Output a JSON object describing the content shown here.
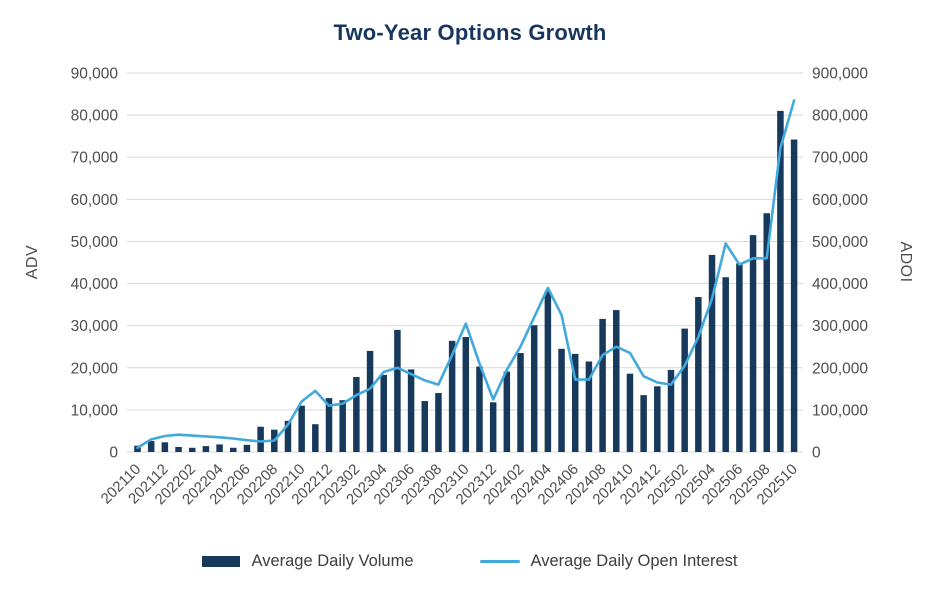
{
  "title": "Two-Year Options Growth",
  "chart_data": {
    "type": "bar",
    "title": "Two-Year Options Growth",
    "ylabel_left": "ADV",
    "ylabel_right": "ADOI",
    "ylim_left": [
      0,
      90000
    ],
    "ylim_right": [
      0,
      900000
    ],
    "y_tick_step_left": 10000,
    "y_tick_step_right": 100000,
    "grid": true,
    "legend_position": "bottom",
    "x_tick_labels": [
      "202110",
      "202112",
      "202202",
      "202204",
      "202206",
      "202208",
      "202210",
      "202212",
      "202302",
      "202304",
      "202306",
      "202308",
      "202310",
      "202312",
      "202402",
      "202404",
      "202406",
      "202408",
      "202410",
      "202412",
      "202502",
      "202504",
      "202506",
      "202508",
      "202510"
    ],
    "categories": [
      "202110",
      "202111",
      "202112",
      "202201",
      "202202",
      "202203",
      "202204",
      "202205",
      "202206",
      "202207",
      "202208",
      "202209",
      "202210",
      "202211",
      "202212",
      "202301",
      "202302",
      "202303",
      "202304",
      "202305",
      "202306",
      "202307",
      "202308",
      "202309",
      "202310",
      "202311",
      "202312",
      "202401",
      "202402",
      "202403",
      "202404",
      "202405",
      "202406",
      "202407",
      "202408",
      "202409",
      "202410",
      "202411",
      "202412",
      "202501",
      "202502",
      "202503",
      "202504",
      "202505",
      "202506",
      "202507",
      "202508",
      "202509",
      "202510"
    ],
    "series": [
      {
        "name": "Average Daily Volume",
        "type": "bar",
        "axis": "left",
        "values": [
          1500,
          2600,
          2300,
          1200,
          1000,
          1400,
          1800,
          1000,
          1700,
          6000,
          5300,
          7400,
          11000,
          6600,
          12800,
          12300,
          17800,
          24000,
          18300,
          29000,
          19600,
          12100,
          14000,
          26400,
          27300,
          20300,
          11800,
          19100,
          23500,
          30100,
          38200,
          24500,
          23300,
          21500,
          31600,
          33700,
          18600,
          13500,
          15600,
          19500,
          29300,
          36800,
          46800,
          41500,
          44800,
          51500,
          56700,
          81000,
          74200
        ]
      },
      {
        "name": "Average Daily Open Interest",
        "type": "line",
        "axis": "right",
        "values": [
          10000,
          30000,
          38000,
          41000,
          39000,
          37000,
          35000,
          32000,
          28000,
          25000,
          27000,
          65000,
          120000,
          145000,
          110000,
          115000,
          135000,
          150000,
          190000,
          200000,
          185000,
          170000,
          160000,
          230000,
          305000,
          210000,
          125000,
          195000,
          250000,
          320000,
          390000,
          325000,
          172000,
          172000,
          230000,
          250000,
          235000,
          180000,
          165000,
          160000,
          205000,
          273000,
          364000,
          495000,
          445000,
          460000,
          460000,
          722000,
          835000
        ]
      }
    ],
    "colors": {
      "bar": "#173A5C",
      "line": "#41A9DC",
      "grid": "#D9D9D9",
      "tick_text": "#4D4D4D",
      "title": "#17365D",
      "legend_text": "#3D3D3D"
    }
  }
}
